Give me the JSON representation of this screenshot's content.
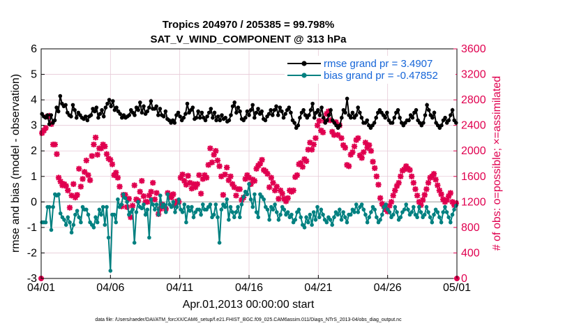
{
  "chart_data": {
    "type": "line",
    "title_line1": "Tropics 204970 / 205385 = 99.798%",
    "title_line2": "SAT_V_WIND_COMPONENT @ 313 hPa",
    "xlabel": "Apr.01,2013 00:00:00 start",
    "ylabel_left": "rmse and bias (model - observation)",
    "ylabel_right": "# of obs: o=possible; ×=assimilated",
    "x_ticks": [
      {
        "day": 0,
        "label": "04/01"
      },
      {
        "day": 5,
        "label": "04/06"
      },
      {
        "day": 10,
        "label": "04/11"
      },
      {
        "day": 15,
        "label": "04/16"
      },
      {
        "day": 20,
        "label": "04/21"
      },
      {
        "day": 25,
        "label": "04/26"
      },
      {
        "day": 30,
        "label": "05/01"
      }
    ],
    "xlim": [
      0,
      30
    ],
    "ylim_left": [
      -3,
      6
    ],
    "ylim_right": [
      0,
      3600
    ],
    "left_ticks": [
      -3,
      -2,
      -1,
      0,
      1,
      2,
      3,
      4,
      5,
      6
    ],
    "right_ticks": [
      0,
      400,
      800,
      1200,
      1600,
      2000,
      2400,
      2800,
      3200,
      3600
    ],
    "colors": {
      "rmse": "#000000",
      "bias": "#008080",
      "obs": "#e0004f",
      "grid": "#e6c9d6",
      "legend_text": "#1565d8"
    },
    "series": [
      {
        "name": "rmse grand pr = 3.4907",
        "values": [
          3.45,
          3.35,
          3.3,
          3.4,
          3.05,
          3.4,
          3.1,
          3.2,
          3.7,
          3.55,
          4.15,
          3.85,
          3.75,
          3.8,
          3.5,
          3.4,
          3.35,
          3.8,
          3.6,
          3.3,
          3.5,
          3.4,
          3.3,
          3.25,
          3.35,
          3.2,
          3.35,
          3.4,
          3.65,
          3.55,
          3.7,
          3.3,
          3.45,
          3.6,
          3.35,
          3.7,
          3.85,
          4.0,
          3.75,
          3.95,
          3.6,
          3.7,
          3.55,
          3.45,
          3.3,
          3.4,
          3.3,
          3.35,
          3.4,
          3.6,
          3.5,
          3.4,
          3.7,
          3.6,
          3.9,
          3.5,
          3.75,
          3.45,
          3.55,
          3.7,
          3.95,
          3.65,
          3.65,
          3.75,
          3.4,
          3.65,
          3.4,
          3.35,
          3.55,
          3.25,
          3.2,
          3.1,
          3.2,
          3.1,
          3.4,
          3.5,
          3.35,
          3.2,
          3.3,
          3.45,
          3.85,
          3.5,
          3.6,
          3.7,
          3.25,
          3.3,
          3.55,
          3.3,
          3.5,
          3.3,
          3.2,
          3.35,
          3.5,
          3.65,
          3.3,
          3.5,
          3.2,
          3.35,
          3.2,
          3.4,
          3.25,
          3.3,
          3.15,
          3.2,
          3.4,
          3.75,
          3.9,
          3.5,
          3.7,
          3.55,
          3.25,
          3.2,
          3.3,
          3.55,
          3.4,
          3.6,
          3.8,
          3.3,
          3.5,
          3.65,
          3.45,
          3.55,
          3.25,
          3.2,
          3.35,
          3.45,
          3.6,
          3.4,
          3.6,
          3.75,
          3.4,
          3.7,
          3.55,
          3.3,
          3.45,
          3.6,
          3.7,
          3.5,
          3.2,
          3.1,
          2.9,
          3.0,
          3.3,
          3.5,
          3.6,
          3.4,
          3.3,
          3.4,
          3.6,
          3.85,
          3.3,
          3.5,
          3.6,
          3.4,
          3.7,
          3.3,
          3.1,
          3.2,
          3.4,
          3.6,
          3.2,
          3.1,
          3.0,
          2.9,
          3.0,
          3.3,
          3.6,
          3.5,
          4.05,
          3.4,
          3.3,
          3.5,
          3.3,
          3.4,
          3.7,
          3.5,
          3.3,
          3.1,
          3.1,
          3.2,
          3.0,
          2.9,
          3.0,
          3.1,
          3.3,
          3.5,
          3.6,
          3.5,
          3.4,
          3.3,
          3.5,
          3.2,
          3.1,
          3.1,
          3.3,
          3.5,
          3.6,
          3.3,
          3.1,
          3.0,
          3.1,
          3.2,
          3.2,
          3.4,
          3.3,
          3.5,
          3.6,
          3.2,
          3.1,
          3.0,
          3.1,
          3.4,
          3.8,
          3.6,
          3.4,
          3.3,
          3.5,
          3.1,
          3.0,
          2.9,
          3.0,
          3.2,
          3.3,
          3.1,
          3.2,
          3.4,
          3.6,
          3.2,
          3.1
        ]
      },
      {
        "name": "bias grand pr = -0.47852",
        "values": [
          -0.8,
          -0.8,
          -0.8,
          -0.2,
          -0.2,
          -1.1,
          -0.2,
          0.3,
          0.25,
          0.3,
          -0.45,
          -0.6,
          -0.7,
          -0.9,
          -0.6,
          -0.8,
          -1.2,
          -0.9,
          -0.5,
          -0.35,
          -0.6,
          -0.8,
          -0.2,
          -0.3,
          -0.3,
          -0.5,
          -0.8,
          -0.9,
          -1.0,
          -0.6,
          -0.8,
          -0.3,
          -0.5,
          -0.2,
          -0.9,
          -0.2,
          -1.4,
          -2.7,
          -0.5,
          -0.5,
          -0.8,
          0.1,
          -0.2,
          -0.1,
          0.3,
          0.15,
          0.0,
          -0.5,
          -0.4,
          -0.3,
          -1.6,
          -0.4,
          0.0,
          -0.2,
          -0.25,
          -0.1,
          -0.5,
          -0.3,
          -1.4,
          0.1,
          -0.1,
          -0.3,
          -0.1,
          -0.5,
          0.25,
          -0.2,
          -0.1,
          -0.4,
          0.3,
          -0.1,
          -0.2,
          0.0,
          -0.4,
          -0.2,
          0.1,
          -0.3,
          -0.4,
          -0.1,
          -0.8,
          -0.2,
          -0.35,
          -0.2,
          -0.6,
          -0.4,
          -0.3,
          -0.3,
          -0.5,
          -0.1,
          -0.3,
          -0.3,
          -0.2,
          -0.1,
          -0.6,
          -0.5,
          -0.1,
          -0.6,
          -1.6,
          -0.3,
          -0.1,
          -0.2,
          0.1,
          -0.7,
          -0.2,
          -0.4,
          -0.6,
          -0.4,
          -0.2,
          -0.6,
          -0.1,
          0.2,
          0.4,
          0.3,
          0.7,
          0.1,
          -0.2,
          0.3,
          -0.4,
          -0.6,
          0.3,
          0.2,
          0.1,
          -0.2,
          -0.3,
          -0.7,
          -0.2,
          -0.3,
          -0.1,
          -0.4,
          -0.7,
          -0.5,
          -0.2,
          -0.3,
          -0.5,
          -0.4,
          -0.6,
          -0.5,
          -0.8,
          -0.7,
          -0.4,
          -0.3,
          -0.6,
          -0.9,
          -1.0,
          -0.6,
          -0.8,
          -0.5,
          -0.9,
          -0.4,
          -0.7,
          -0.2,
          -0.6,
          -0.3,
          -0.5,
          -0.7,
          -0.8,
          -0.6,
          -0.7,
          -0.9,
          -0.6,
          -0.4,
          -0.5,
          -0.3,
          -0.7,
          -0.4,
          -0.6,
          -0.8,
          -0.5,
          -0.5,
          -0.3,
          -0.4,
          -0.1,
          -0.4,
          -0.2,
          -0.1,
          -0.3,
          -0.5,
          -0.8,
          -0.6,
          -0.4,
          -0.2,
          -0.3,
          -0.6,
          -0.8,
          -0.7,
          -0.5,
          -0.2,
          -0.1,
          -0.3,
          -0.4,
          -0.6,
          -0.5,
          -0.2,
          -0.4,
          -0.7,
          -0.6,
          -0.4,
          -0.3,
          -0.1,
          -0.3,
          -0.5,
          -0.4,
          -0.2,
          -0.5,
          -0.6,
          -0.2,
          -0.4,
          -0.6,
          -0.5,
          -0.2,
          -0.4,
          -0.6,
          -0.8,
          -0.5,
          -0.3,
          -0.4,
          -0.6,
          -0.8,
          -0.4,
          -0.2,
          -0.4,
          -0.6,
          -0.8,
          -0.5,
          -0.3,
          -0.15
        ]
      }
    ],
    "obs_assimilated": [
      2280,
      2320,
      2360,
      2540,
      2550,
      2420,
      2100,
      2100,
      1950,
      1580,
      1520,
      1460,
      1480,
      1450,
      1380,
      1110,
      1300,
      1480,
      1270,
      1310,
      1720,
      1440,
      1560,
      1670,
      1850,
      1620,
      1540,
      1920,
      2100,
      2210,
      1940,
      2040,
      2040,
      2100,
      2070,
      1950,
      1880,
      1860,
      1790,
      1620,
      1660,
      1580,
      1440,
      1130,
      1310,
      1310,
      1120,
      1250,
      960,
      1140,
      1460,
      1240,
      1220,
      1360,
      1530,
      1290,
      1200,
      1200,
      1300,
      1360,
      1500,
      1240,
      1340,
      1010,
      1090,
      1160,
      1130,
      1090,
      1340,
      1300,
      1270,
      1320,
      1150,
      1210,
      1200,
      1580,
      1630,
      1530,
      1470,
      1610,
      1500,
      1410,
      1480,
      1430,
      1480,
      1620,
      1330,
      1560,
      1620,
      1580,
      1780,
      2040,
      1820,
      1940,
      2000,
      1850,
      1760,
      1600,
      1310,
      1630,
      1740,
      1540,
      1600,
      1480,
      1430,
      1300,
      1400,
      1400,
      1230,
      1270,
      1560,
      1620,
      1580,
      1480,
      1550,
      1530,
      1720,
      1770,
      1800,
      1860,
      1700,
      1680,
      1640,
      1430,
      1580,
      1500,
      1380,
      1440,
      1250,
      1380,
      1330,
      1250,
      1210,
      1260,
      1380,
      1360,
      1380,
      1590,
      1620,
      1790,
      1810,
      1750,
      1870,
      1840,
      2020,
      2130,
      2020,
      2100,
      2200,
      2400,
      2470,
      2320,
      2290,
      2470,
      2580,
      2620,
      2480,
      2300,
      2250,
      2450,
      2250,
      2400,
      2200,
      2090,
      2050,
      1780,
      1760,
      1940,
      1980,
      2070,
      2170,
      2200,
      1930,
      1890,
      1980,
      2130,
      2050,
      2090,
      2000,
      1830,
      1730,
      1600,
      1470,
      1260,
      1170,
      1130,
      1080,
      1050,
      1140,
      1200,
      1300,
      1380,
      1450,
      1500,
      1600,
      1690,
      1710,
      1760,
      1720,
      1700,
      1600,
      1500,
      1400,
      1300,
      1200,
      1150,
      1230,
      1310,
      1400,
      1500,
      1580,
      1600,
      1640,
      1550,
      1460,
      1380,
      1320,
      1240,
      1200,
      1230,
      1290,
      1340,
      1200,
      1150,
      1180
    ],
    "obs_possible_markers": [
      {
        "day": 0,
        "value": 0
      },
      {
        "day": 30,
        "value": 0
      }
    ],
    "legend": [
      {
        "label": "rmse grand pr = 3.4907",
        "series": "rmse"
      },
      {
        "label": "bias grand pr = -0.47852",
        "series": "bias"
      }
    ]
  },
  "footnote": "data file: /Users/raeder/DAI/ATM_forcXX/CAM6_setup/f.e21.FHIST_BGC.f09_025.CAM6assim.011/Diags_NTrS_2013-04/obs_diag_output.nc"
}
